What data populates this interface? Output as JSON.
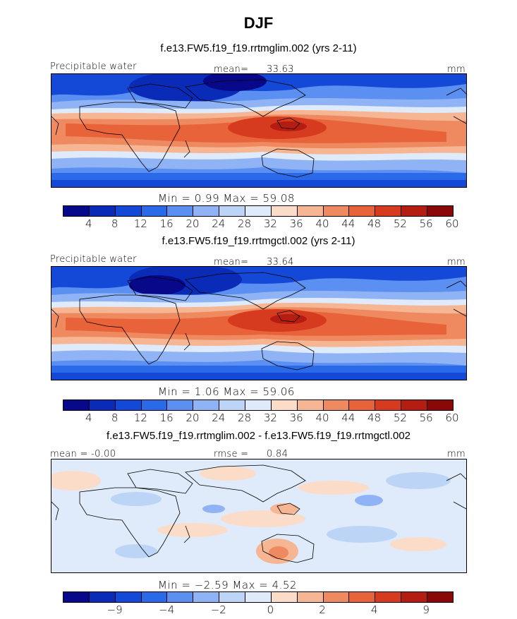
{
  "figure": {
    "season": "DJF",
    "land_outline_color": "#000000"
  },
  "panels": [
    {
      "title": "f.e13.FW5.f19_f19.rrtmglim.002 (yrs 2-11)",
      "variable": "Precipitable water",
      "mean_label": "mean=",
      "mean_value": "33.63",
      "units": "mm",
      "stats": "Min =    0.99  Max =   59.08"
    },
    {
      "title": "f.e13.FW5.f19_f19.rrtmgctl.002 (yrs 2-11)",
      "variable": "Precipitable water",
      "mean_label": "mean=",
      "mean_value": "33.64",
      "units": "mm",
      "stats": "Min =    1.06  Max =   59.06"
    },
    {
      "title": "f.e13.FW5.f19_f19.rrtmglim.002 - f.e13.FW5.f19_f19.rrtmgctl.002",
      "mean_text": "mean =  -0.00",
      "rmse_label": "rmse =",
      "rmse_value": "0.84",
      "units": "mm",
      "stats": "Min =  −2.59  Max =    4.52"
    }
  ],
  "colorbars": {
    "abs": {
      "colors": [
        "#08088a",
        "#0a2bb8",
        "#1449d8",
        "#2a6ae8",
        "#5b8ff2",
        "#8fb3f5",
        "#bcd5f7",
        "#dfebfa",
        "#fbdcc8",
        "#f6b593",
        "#ef8a60",
        "#e8623a",
        "#d63a1f",
        "#b51d12",
        "#8a0808"
      ],
      "ticks": [
        "4",
        "8",
        "12",
        "16",
        "20",
        "24",
        "28",
        "32",
        "36",
        "40",
        "44",
        "48",
        "52",
        "56",
        "60"
      ]
    },
    "diff": {
      "colors": [
        "#08088a",
        "#0a2bb8",
        "#1449d8",
        "#2a6ae8",
        "#5b8ff2",
        "#8fb3f5",
        "#bcd5f7",
        "#dfebfa",
        "#fbdcc8",
        "#f6b593",
        "#ef8a60",
        "#e8623a",
        "#d63a1f",
        "#b51d12",
        "#8a0808"
      ],
      "ticks": [
        "−9",
        "−4",
        "−2",
        "0",
        "2",
        "4",
        "9"
      ]
    }
  }
}
